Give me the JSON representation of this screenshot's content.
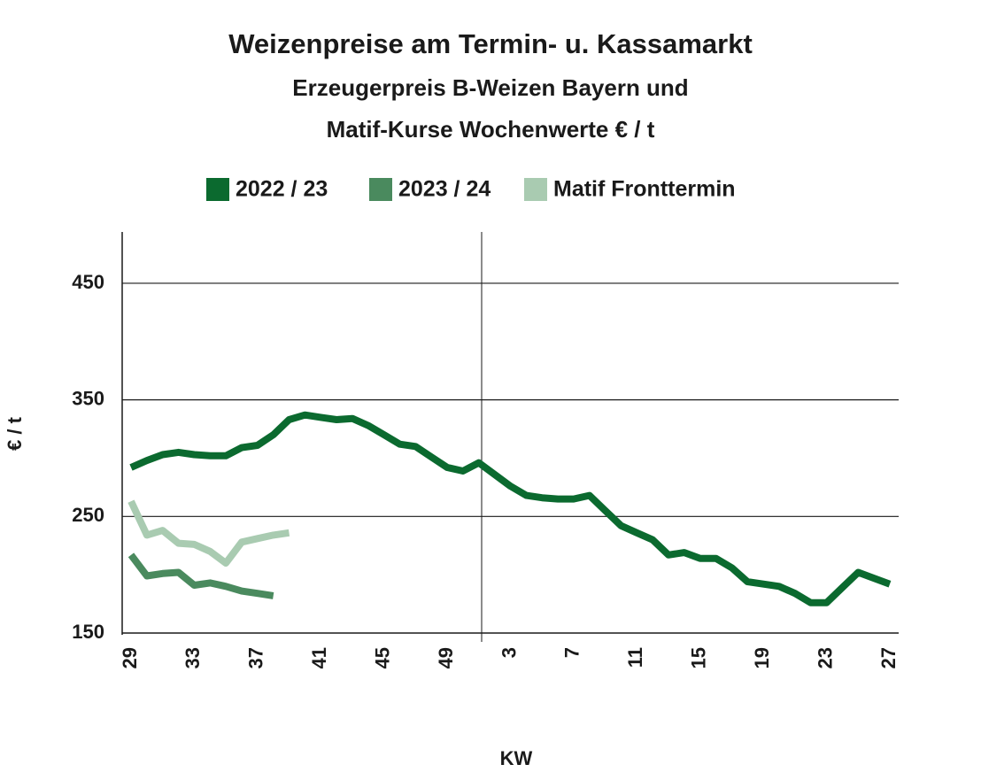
{
  "chart_data": {
    "type": "line",
    "title": "Weizenpreise am Termin- u. Kassamarkt",
    "subtitle": [
      "Erzeugerpreis B-Weizen Bayern und",
      "Matif-Kurse Wochenwerte € / t"
    ],
    "x_label": "KW",
    "y_label": "€ / t",
    "categories": [
      "29",
      null,
      null,
      null,
      "33",
      null,
      null,
      null,
      "37",
      null,
      null,
      null,
      "41",
      null,
      null,
      null,
      "45",
      null,
      null,
      null,
      "49",
      null,
      null,
      null,
      "3",
      null,
      null,
      null,
      "7",
      null,
      null,
      null,
      "11",
      null,
      null,
      null,
      "15",
      null,
      null,
      null,
      "19",
      null,
      null,
      null,
      "23",
      null,
      null,
      null,
      "27"
    ],
    "series": [
      {
        "name": "2022 / 23",
        "color": "#0b6a2f",
        "values": [
          292,
          298,
          303,
          305,
          303,
          302,
          302,
          309,
          311,
          320,
          333,
          337,
          335,
          333,
          334,
          328,
          320,
          312,
          310,
          301,
          292,
          289,
          296,
          286,
          276,
          268,
          266,
          265,
          265,
          268,
          255,
          242,
          236,
          230,
          217,
          219,
          214,
          214,
          206,
          194,
          192,
          190,
          184,
          176,
          176,
          189,
          202,
          197,
          192
        ]
      },
      {
        "name": "2023 / 24",
        "color": "#4a8a5e",
        "values": [
          217,
          199,
          201,
          202,
          191,
          193,
          190,
          186,
          184,
          182,
          null,
          null,
          null,
          null,
          null,
          null,
          null,
          null,
          null,
          null,
          null,
          null,
          null,
          null,
          null,
          null,
          null,
          null,
          null,
          null,
          null,
          null,
          null,
          null,
          null,
          null,
          null,
          null,
          null,
          null,
          null,
          null,
          null,
          null,
          null,
          null,
          null,
          null,
          null
        ]
      },
      {
        "name": "Matif Fronttermin",
        "color": "#a9cbb1",
        "values": [
          263,
          234,
          238,
          227,
          226,
          220,
          210,
          228,
          231,
          234,
          236,
          null,
          null,
          null,
          null,
          null,
          null,
          null,
          null,
          null,
          null,
          null,
          null,
          null,
          null,
          null,
          null,
          null,
          null,
          null,
          null,
          null,
          null,
          null,
          null,
          null,
          null,
          null,
          null,
          null,
          null,
          null,
          null,
          null,
          null,
          null,
          null,
          null,
          null
        ]
      }
    ],
    "ylim": [
      150,
      494
    ],
    "yticks": [
      150,
      250,
      350,
      450
    ],
    "grid": true
  }
}
